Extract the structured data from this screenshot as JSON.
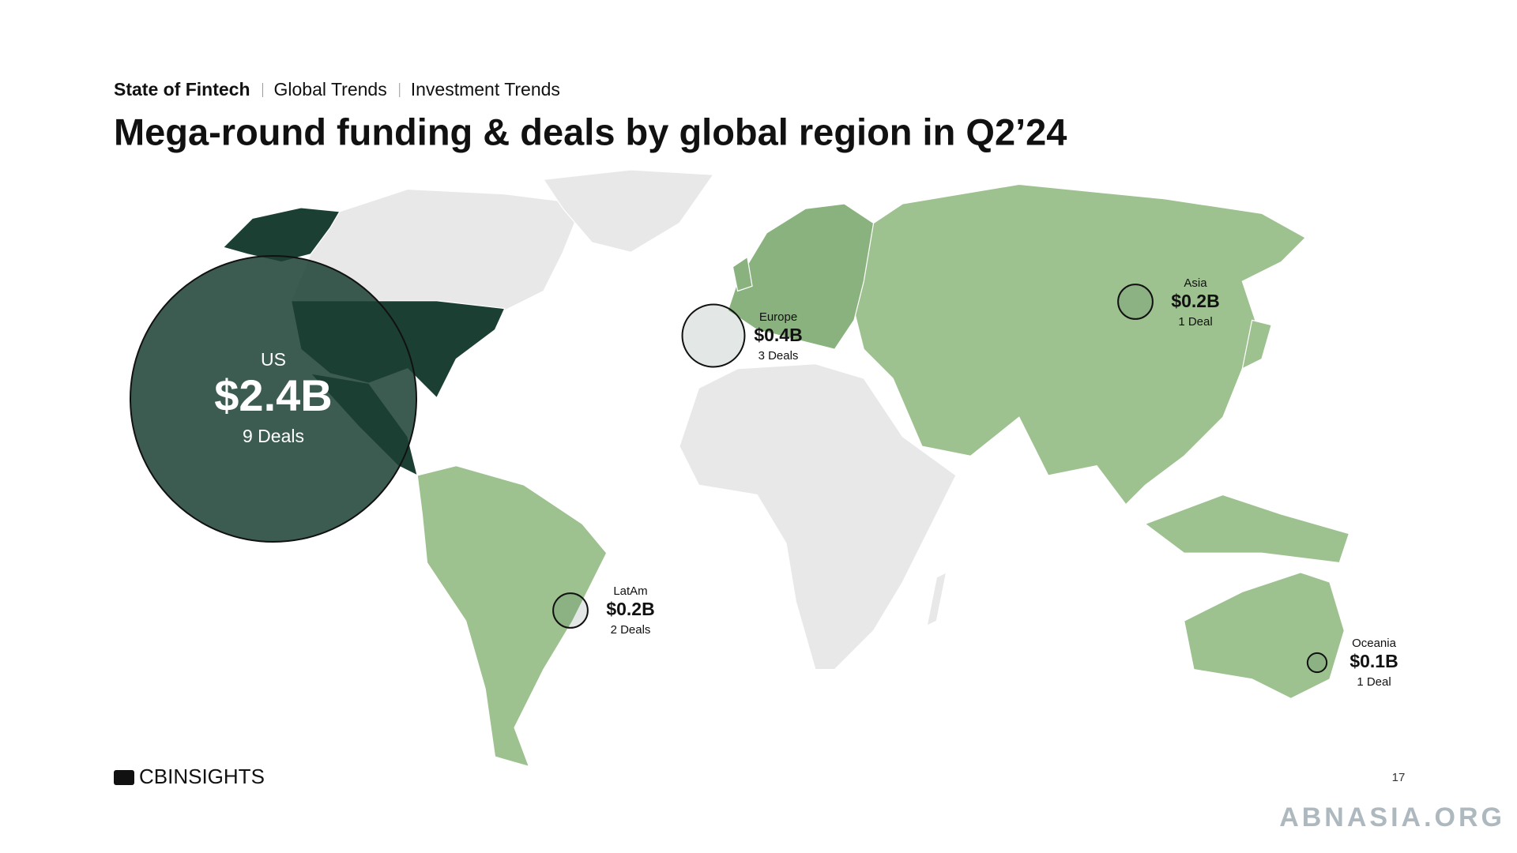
{
  "breadcrumb": [
    "State of Fintech",
    "Global Trends",
    "Investment Trends"
  ],
  "chart_data": {
    "type": "bubble_map",
    "title": "Mega-round funding & deals by global region in Q2’24",
    "color": "#1b3f33",
    "series": [
      {
        "name": "US",
        "value": 2.4,
        "value_label": "$2.4B",
        "deals": 9,
        "deals_label": "9 Deals"
      },
      {
        "name": "Europe",
        "value": 0.4,
        "value_label": "$0.4B",
        "deals": 3,
        "deals_label": "3 Deals"
      },
      {
        "name": "Asia",
        "value": 0.2,
        "value_label": "$0.2B",
        "deals": 1,
        "deals_label": "1 Deal"
      },
      {
        "name": "LatAm",
        "value": 0.2,
        "value_label": "$0.2B",
        "deals": 2,
        "deals_label": "2 Deals"
      },
      {
        "name": "Oceania",
        "value": 0.1,
        "value_label": "$0.1B",
        "deals": 1,
        "deals_label": "1 Deal"
      }
    ]
  },
  "footer": {
    "logo": "CBINSIGHTS",
    "page_number": "17",
    "watermark": "ABNASIA.ORG"
  }
}
